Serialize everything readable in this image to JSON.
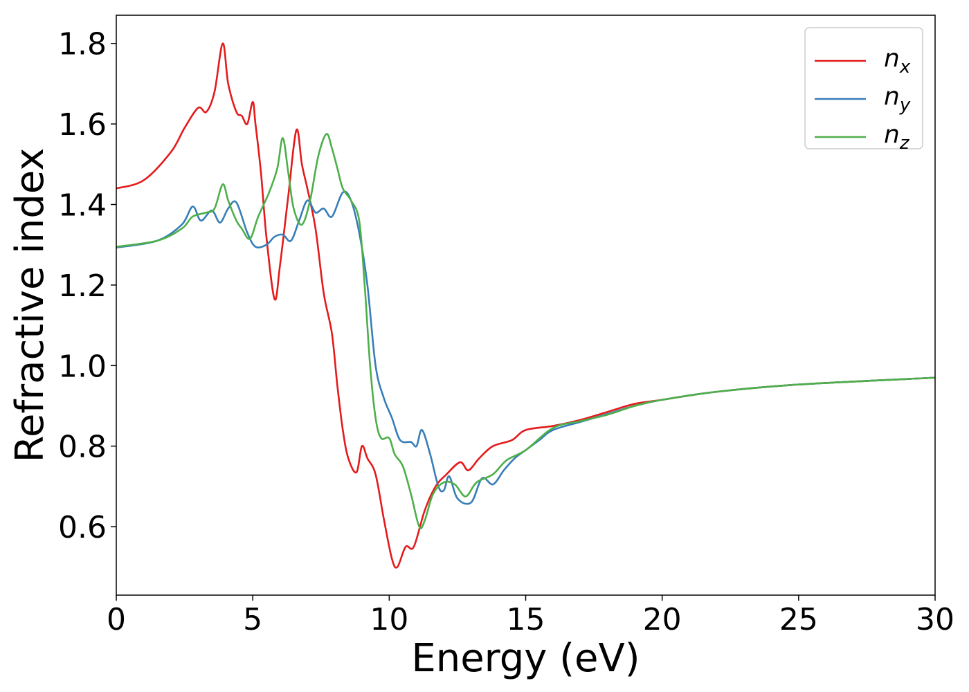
{
  "chart_data": {
    "type": "line",
    "xlabel": "Energy (eV)",
    "ylabel": "Refractive index",
    "xlim": [
      0,
      30
    ],
    "ylim": [
      0.43,
      1.87
    ],
    "xticks": [
      0,
      5,
      10,
      15,
      20,
      25,
      30
    ],
    "xtick_labels": [
      "0",
      "5",
      "10",
      "15",
      "20",
      "25",
      "30"
    ],
    "yticks": [
      0.6,
      0.8,
      1.0,
      1.2,
      1.4,
      1.6,
      1.8
    ],
    "ytick_labels": [
      "0.6",
      "0.8",
      "1.0",
      "1.2",
      "1.4",
      "1.6",
      "1.8"
    ],
    "grid": false,
    "legend_position": "top-right",
    "series": [
      {
        "name": "n",
        "subscript": "x",
        "color": "#e41a1c",
        "points": [
          [
            0,
            1.44
          ],
          [
            1,
            1.46
          ],
          [
            2,
            1.53
          ],
          [
            2.5,
            1.59
          ],
          [
            3,
            1.64
          ],
          [
            3.3,
            1.63
          ],
          [
            3.6,
            1.68
          ],
          [
            3.9,
            1.8
          ],
          [
            4.1,
            1.7
          ],
          [
            4.4,
            1.63
          ],
          [
            4.6,
            1.62
          ],
          [
            4.8,
            1.6
          ],
          [
            5.0,
            1.655
          ],
          [
            5.1,
            1.6
          ],
          [
            5.3,
            1.48
          ],
          [
            5.5,
            1.32
          ],
          [
            5.8,
            1.165
          ],
          [
            6.0,
            1.25
          ],
          [
            6.3,
            1.42
          ],
          [
            6.6,
            1.585
          ],
          [
            6.8,
            1.5
          ],
          [
            7.0,
            1.44
          ],
          [
            7.3,
            1.34
          ],
          [
            7.6,
            1.18
          ],
          [
            7.9,
            1.08
          ],
          [
            8.1,
            0.95
          ],
          [
            8.3,
            0.84
          ],
          [
            8.5,
            0.77
          ],
          [
            8.8,
            0.735
          ],
          [
            9.0,
            0.8
          ],
          [
            9.2,
            0.77
          ],
          [
            9.5,
            0.73
          ],
          [
            9.8,
            0.62
          ],
          [
            10.1,
            0.52
          ],
          [
            10.3,
            0.5
          ],
          [
            10.6,
            0.55
          ],
          [
            10.9,
            0.55
          ],
          [
            11.3,
            0.64
          ],
          [
            11.7,
            0.7
          ],
          [
            12.1,
            0.73
          ],
          [
            12.6,
            0.76
          ],
          [
            12.9,
            0.74
          ],
          [
            13.3,
            0.77
          ],
          [
            13.8,
            0.8
          ],
          [
            14.5,
            0.815
          ],
          [
            15.0,
            0.84
          ],
          [
            16.0,
            0.85
          ],
          [
            17.0,
            0.865
          ],
          [
            18.0,
            0.885
          ],
          [
            19.0,
            0.905
          ],
          [
            20.0,
            0.915
          ],
          [
            22.0,
            0.935
          ],
          [
            25.0,
            0.953
          ],
          [
            30.0,
            0.97
          ]
        ]
      },
      {
        "name": "n",
        "subscript": "y",
        "color": "#377eb8",
        "points": [
          [
            0,
            1.293
          ],
          [
            1.5,
            1.31
          ],
          [
            2.4,
            1.35
          ],
          [
            2.8,
            1.395
          ],
          [
            3.1,
            1.36
          ],
          [
            3.5,
            1.385
          ],
          [
            3.8,
            1.355
          ],
          [
            4.1,
            1.39
          ],
          [
            4.4,
            1.405
          ],
          [
            4.8,
            1.33
          ],
          [
            5.1,
            1.295
          ],
          [
            5.5,
            1.3
          ],
          [
            5.8,
            1.32
          ],
          [
            6.1,
            1.325
          ],
          [
            6.4,
            1.31
          ],
          [
            6.7,
            1.36
          ],
          [
            7.0,
            1.41
          ],
          [
            7.3,
            1.38
          ],
          [
            7.6,
            1.39
          ],
          [
            7.9,
            1.37
          ],
          [
            8.3,
            1.43
          ],
          [
            8.6,
            1.41
          ],
          [
            8.9,
            1.33
          ],
          [
            9.2,
            1.2
          ],
          [
            9.5,
            1.0
          ],
          [
            9.8,
            0.92
          ],
          [
            10.1,
            0.87
          ],
          [
            10.4,
            0.815
          ],
          [
            10.8,
            0.81
          ],
          [
            11.0,
            0.8
          ],
          [
            11.2,
            0.84
          ],
          [
            11.5,
            0.78
          ],
          [
            11.8,
            0.7
          ],
          [
            12.0,
            0.69
          ],
          [
            12.2,
            0.725
          ],
          [
            12.5,
            0.67
          ],
          [
            13.0,
            0.66
          ],
          [
            13.4,
            0.72
          ],
          [
            13.8,
            0.705
          ],
          [
            14.2,
            0.74
          ],
          [
            14.6,
            0.77
          ],
          [
            15.0,
            0.79
          ],
          [
            15.5,
            0.815
          ],
          [
            16.0,
            0.84
          ],
          [
            17.0,
            0.86
          ],
          [
            18.0,
            0.88
          ],
          [
            19.0,
            0.9
          ],
          [
            20.0,
            0.915
          ],
          [
            22.0,
            0.935
          ],
          [
            25.0,
            0.953
          ],
          [
            30.0,
            0.97
          ]
        ]
      },
      {
        "name": "n",
        "subscript": "z",
        "color": "#4daf4a",
        "points": [
          [
            0,
            1.295
          ],
          [
            1.5,
            1.31
          ],
          [
            2.4,
            1.34
          ],
          [
            2.8,
            1.37
          ],
          [
            3.3,
            1.38
          ],
          [
            3.6,
            1.39
          ],
          [
            3.9,
            1.45
          ],
          [
            4.1,
            1.41
          ],
          [
            4.4,
            1.36
          ],
          [
            4.6,
            1.34
          ],
          [
            4.9,
            1.315
          ],
          [
            5.2,
            1.37
          ],
          [
            5.6,
            1.43
          ],
          [
            5.9,
            1.49
          ],
          [
            6.1,
            1.565
          ],
          [
            6.3,
            1.48
          ],
          [
            6.5,
            1.39
          ],
          [
            6.8,
            1.35
          ],
          [
            7.1,
            1.41
          ],
          [
            7.4,
            1.52
          ],
          [
            7.7,
            1.575
          ],
          [
            7.9,
            1.54
          ],
          [
            8.1,
            1.49
          ],
          [
            8.3,
            1.44
          ],
          [
            8.6,
            1.41
          ],
          [
            8.9,
            1.36
          ],
          [
            9.1,
            1.2
          ],
          [
            9.3,
            1.0
          ],
          [
            9.5,
            0.87
          ],
          [
            9.7,
            0.82
          ],
          [
            10.0,
            0.82
          ],
          [
            10.2,
            0.78
          ],
          [
            10.5,
            0.75
          ],
          [
            10.8,
            0.68
          ],
          [
            11.1,
            0.6
          ],
          [
            11.3,
            0.615
          ],
          [
            11.6,
            0.68
          ],
          [
            12.0,
            0.71
          ],
          [
            12.4,
            0.705
          ],
          [
            12.8,
            0.675
          ],
          [
            13.2,
            0.71
          ],
          [
            13.8,
            0.73
          ],
          [
            14.3,
            0.765
          ],
          [
            15.0,
            0.79
          ],
          [
            16.0,
            0.845
          ],
          [
            17.0,
            0.862
          ],
          [
            18.0,
            0.878
          ],
          [
            19.0,
            0.9
          ],
          [
            20.0,
            0.915
          ],
          [
            22.0,
            0.935
          ],
          [
            25.0,
            0.953
          ],
          [
            30.0,
            0.97
          ]
        ]
      }
    ]
  }
}
